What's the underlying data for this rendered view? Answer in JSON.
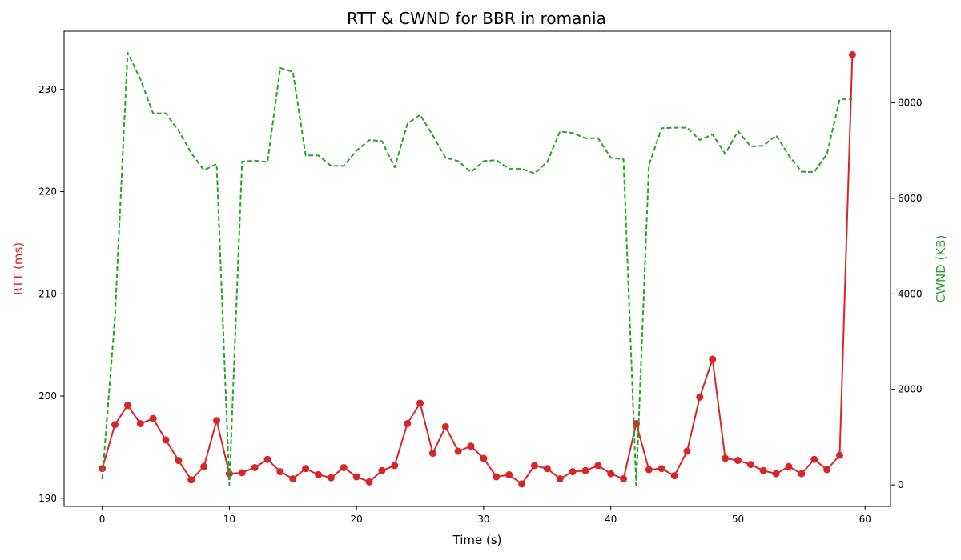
{
  "chart_data": {
    "type": "line",
    "title": "RTT & CWND for BBR in romania",
    "xlabel": "Time (s)",
    "ylabel_left": "RTT (ms)",
    "ylabel_right": "CWND (KB)",
    "xlim": [
      -3,
      62
    ],
    "ylim_left": [
      189.2,
      235.7
    ],
    "ylim_right": [
      -450,
      9500
    ],
    "x_ticks": [
      0,
      10,
      20,
      30,
      40,
      50,
      60
    ],
    "y_left_ticks": [
      190,
      200,
      210,
      220,
      230
    ],
    "y_right_ticks": [
      0,
      2000,
      4000,
      6000,
      8000
    ],
    "grid": false,
    "x": [
      0,
      1,
      2,
      3,
      4,
      5,
      6,
      7,
      8,
      9,
      10,
      11,
      12,
      13,
      14,
      15,
      16,
      17,
      18,
      19,
      20,
      21,
      22,
      23,
      24,
      25,
      26,
      27,
      28,
      29,
      30,
      31,
      32,
      33,
      34,
      35,
      36,
      37,
      38,
      39,
      40,
      41,
      42,
      43,
      44,
      45,
      46,
      47,
      48,
      49,
      50,
      51,
      52,
      53,
      54,
      55,
      56,
      57,
      58,
      59
    ],
    "series": [
      {
        "axis": "left",
        "color": "#d62728",
        "style": "solid-markers",
        "values": [
          192.9,
          197.2,
          199.1,
          197.3,
          197.8,
          195.7,
          193.7,
          191.8,
          193.1,
          197.6,
          192.4,
          192.5,
          193.0,
          193.8,
          192.6,
          191.9,
          192.9,
          192.3,
          192.0,
          193.0,
          192.1,
          191.6,
          192.7,
          193.2,
          197.3,
          199.3,
          194.4,
          197.0,
          194.6,
          195.1,
          193.9,
          192.1,
          192.3,
          191.4,
          193.2,
          192.9,
          191.9,
          192.6,
          192.7,
          193.2,
          192.4,
          191.9,
          197.3,
          192.8,
          192.9,
          192.2,
          194.6,
          199.9,
          203.6,
          193.9,
          193.7,
          193.3,
          192.7,
          192.4,
          193.1,
          192.4,
          193.8,
          192.8,
          194.2,
          233.4
        ]
      },
      {
        "axis": "right",
        "color": "#2ca02c",
        "style": "dashed",
        "values": [
          120,
          3500,
          9050,
          8500,
          7780,
          7780,
          7420,
          6950,
          6590,
          6720,
          0,
          6770,
          6790,
          6760,
          8730,
          8650,
          6900,
          6900,
          6680,
          6680,
          7000,
          7220,
          7200,
          6650,
          7560,
          7750,
          7320,
          6850,
          6780,
          6550,
          6780,
          6800,
          6620,
          6620,
          6520,
          6760,
          7400,
          7370,
          7260,
          7260,
          6850,
          6820,
          0,
          6700,
          7470,
          7480,
          7480,
          7220,
          7340,
          6930,
          7410,
          7090,
          7100,
          7320,
          6900,
          6560,
          6550,
          6930,
          8070,
          8080
        ]
      }
    ]
  }
}
